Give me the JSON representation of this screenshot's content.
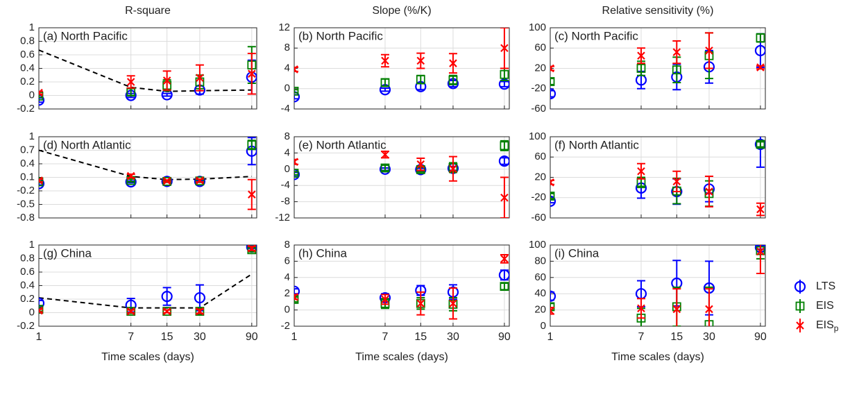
{
  "legend": [
    {
      "name": "LTS",
      "color": "#0000ff",
      "marker": "circle"
    },
    {
      "name": "EIS",
      "color": "#008000",
      "marker": "square"
    },
    {
      "name": "EIS",
      "subscript": "p",
      "color": "#ff0000",
      "marker": "x"
    }
  ],
  "chart_data": [
    {
      "type": "errorbar",
      "column_title": "R-square",
      "title": "(a) North Pacific",
      "x": [
        1,
        7,
        15,
        30,
        90
      ],
      "xscale": "log",
      "xlim": [
        1,
        100
      ],
      "xticks": [
        1,
        7,
        15,
        30,
        90
      ],
      "show_xtick_labels": false,
      "ylim": [
        -0.2,
        1
      ],
      "yticks": [
        -0.2,
        0,
        0.2,
        0.4,
        0.6,
        0.8,
        1
      ],
      "grid": true,
      "reference_line": {
        "values": [
          0.67,
          0.12,
          0.06,
          0.07,
          0.08
        ],
        "color": "#000000",
        "dashed": true
      },
      "series": [
        {
          "values": [
            -0.07,
            0.0,
            0.01,
            0.08,
            0.27
          ],
          "errors": [
            0.03,
            0.03,
            0.02,
            0.06,
            0.25
          ]
        },
        {
          "values": [
            -0.01,
            0.05,
            0.15,
            0.2,
            0.45
          ],
          "errors": [
            0.02,
            0.05,
            0.08,
            0.1,
            0.27
          ]
        },
        {
          "values": [
            0.04,
            0.2,
            0.22,
            0.26,
            0.32
          ],
          "errors": [
            0.02,
            0.09,
            0.14,
            0.19,
            0.3
          ]
        }
      ]
    },
    {
      "type": "errorbar",
      "column_title": "Slope (%/K)",
      "title": "(b) North Pacific",
      "x": [
        1,
        7,
        15,
        30,
        90
      ],
      "xscale": "log",
      "xlim": [
        1,
        100
      ],
      "xticks": [
        1,
        7,
        15,
        30,
        90
      ],
      "show_xtick_labels": false,
      "ylim": [
        -4,
        12
      ],
      "yticks": [
        -4,
        0,
        4,
        8,
        12
      ],
      "grid": true,
      "series": [
        {
          "values": [
            -1.6,
            -0.2,
            0.4,
            1.0,
            0.9
          ],
          "errors": [
            0.4,
            0.3,
            0.6,
            0.6,
            0.5
          ]
        },
        {
          "values": [
            -0.5,
            1.2,
            1.8,
            1.7,
            2.8
          ],
          "errors": [
            0.3,
            0.7,
            0.8,
            0.9,
            1.2
          ]
        },
        {
          "values": [
            3.8,
            5.5,
            5.5,
            5.0,
            8.0
          ],
          "errors": [
            0.4,
            1.2,
            1.5,
            1.9,
            4.0
          ]
        }
      ]
    },
    {
      "type": "errorbar",
      "column_title": "Relative sensitivity (%)",
      "title": "(c) North Pacific",
      "x": [
        1,
        7,
        15,
        30,
        90
      ],
      "xscale": "log",
      "xlim": [
        1,
        100
      ],
      "xticks": [
        1,
        7,
        15,
        30,
        90
      ],
      "show_xtick_labels": false,
      "ylim": [
        -60,
        100
      ],
      "yticks": [
        -60,
        -20,
        20,
        60,
        100
      ],
      "grid": true,
      "series": [
        {
          "values": [
            -30,
            -3,
            3,
            23,
            55
          ],
          "errors": [
            6,
            17,
            25,
            32,
            33
          ]
        },
        {
          "values": [
            -6,
            20,
            17,
            45,
            80
          ],
          "errors": [
            6,
            14,
            25,
            45,
            8
          ]
        },
        {
          "values": [
            20,
            45,
            52,
            55,
            22
          ],
          "errors": [
            4,
            15,
            22,
            35,
            3
          ]
        }
      ]
    },
    {
      "type": "errorbar",
      "title": "(d) North Atlantic",
      "x": [
        1,
        7,
        15,
        30,
        90
      ],
      "xscale": "log",
      "xlim": [
        1,
        100
      ],
      "xticks": [
        1,
        7,
        15,
        30,
        90
      ],
      "show_xtick_labels": false,
      "ylim": [
        -0.8,
        1
      ],
      "yticks": [
        -0.8,
        -0.5,
        -0.2,
        0.1,
        0.4,
        0.7,
        1
      ],
      "grid": true,
      "reference_line": {
        "values": [
          0.7,
          0.12,
          0.05,
          0.06,
          0.12
        ],
        "color": "#000000",
        "dashed": true
      },
      "series": [
        {
          "values": [
            -0.04,
            0.0,
            0.01,
            0.01,
            0.68
          ],
          "errors": [
            0.03,
            0.02,
            0.02,
            0.02,
            0.3
          ]
        },
        {
          "values": [
            0.0,
            0.03,
            0.01,
            0.02,
            0.82
          ],
          "errors": [
            0.02,
            0.03,
            0.02,
            0.03,
            0.1
          ]
        },
        {
          "values": [
            0.03,
            0.13,
            0.02,
            0.03,
            -0.28
          ],
          "errors": [
            0.03,
            0.04,
            0.02,
            0.03,
            0.33
          ]
        }
      ]
    },
    {
      "type": "errorbar",
      "title": "(e) North Atlantic",
      "x": [
        1,
        7,
        15,
        30,
        90
      ],
      "xscale": "log",
      "xlim": [
        1,
        100
      ],
      "xticks": [
        1,
        7,
        15,
        30,
        90
      ],
      "show_xtick_labels": false,
      "ylim": [
        -12,
        8
      ],
      "yticks": [
        -12,
        -8,
        -4,
        0,
        4,
        8
      ],
      "grid": true,
      "series": [
        {
          "values": [
            -1.3,
            0.0,
            -0.1,
            0.2,
            2.0
          ],
          "errors": [
            0.5,
            0.3,
            0.3,
            0.5,
            0.8
          ]
        },
        {
          "values": [
            -1.0,
            0.3,
            -0.1,
            0.4,
            5.8
          ],
          "errors": [
            0.4,
            0.7,
            0.6,
            1.2,
            1.2
          ]
        },
        {
          "values": [
            1.8,
            3.6,
            1.2,
            0.1,
            -7.0
          ],
          "errors": [
            0.6,
            0.8,
            1.5,
            3.0,
            5.0
          ]
        }
      ]
    },
    {
      "type": "errorbar",
      "title": "(f) North Atlantic",
      "x": [
        1,
        7,
        15,
        30,
        90
      ],
      "xscale": "log",
      "xlim": [
        1,
        100
      ],
      "xticks": [
        1,
        7,
        15,
        30,
        90
      ],
      "show_xtick_labels": false,
      "ylim": [
        -60,
        100
      ],
      "yticks": [
        -60,
        -20,
        20,
        60,
        100
      ],
      "grid": true,
      "series": [
        {
          "values": [
            -27,
            -1,
            -8,
            -3,
            85
          ],
          "errors": [
            3,
            20,
            25,
            25,
            45
          ]
        },
        {
          "values": [
            -17,
            10,
            -7,
            -12,
            85
          ],
          "errors": [
            5,
            10,
            25,
            25,
            5
          ]
        },
        {
          "values": [
            10,
            32,
            12,
            -8,
            -43
          ],
          "errors": [
            4,
            15,
            20,
            30,
            12
          ]
        }
      ]
    },
    {
      "type": "errorbar",
      "title": "(g) China",
      "x": [
        1,
        7,
        15,
        30,
        90
      ],
      "xscale": "log",
      "xlim": [
        1,
        100
      ],
      "xticks": [
        1,
        7,
        15,
        30,
        90
      ],
      "show_xtick_labels": true,
      "xlabel": "Time scales (days)",
      "ylim": [
        -0.2,
        1
      ],
      "yticks": [
        -0.2,
        0,
        0.2,
        0.4,
        0.6,
        0.8,
        1
      ],
      "grid": true,
      "reference_line": {
        "values": [
          0.22,
          0.07,
          0.07,
          0.07,
          0.57
        ],
        "color": "#000000",
        "dashed": true
      },
      "series": [
        {
          "values": [
            0.14,
            0.11,
            0.24,
            0.22,
            0.97
          ],
          "errors": [
            0.04,
            0.1,
            0.13,
            0.19,
            0.02
          ]
        },
        {
          "values": [
            0.05,
            0.02,
            0.02,
            0.02,
            0.93
          ],
          "errors": [
            0.03,
            0.03,
            0.02,
            0.04,
            0.03
          ]
        },
        {
          "values": [
            0.03,
            0.02,
            0.02,
            0.02,
            0.95
          ],
          "errors": [
            0.02,
            0.02,
            0.02,
            0.03,
            0.03
          ]
        }
      ]
    },
    {
      "type": "errorbar",
      "title": "(h) China",
      "x": [
        1,
        7,
        15,
        30,
        90
      ],
      "xscale": "log",
      "xlim": [
        1,
        100
      ],
      "xticks": [
        1,
        7,
        15,
        30,
        90
      ],
      "show_xtick_labels": true,
      "xlabel": "Time scales (days)",
      "ylim": [
        -2,
        8
      ],
      "yticks": [
        -2,
        0,
        2,
        4,
        6,
        8
      ],
      "grid": true,
      "series": [
        {
          "values": [
            2.3,
            1.5,
            2.4,
            2.2,
            4.3
          ],
          "errors": [
            0.3,
            0.5,
            0.6,
            0.9,
            0.6
          ]
        },
        {
          "values": [
            1.3,
            0.8,
            0.8,
            0.7,
            2.9
          ],
          "errors": [
            0.3,
            0.6,
            0.7,
            0.8,
            0.4
          ]
        },
        {
          "values": [
            1.6,
            1.3,
            0.8,
            0.8,
            6.3
          ],
          "errors": [
            0.3,
            0.6,
            1.4,
            1.9,
            0.5
          ]
        }
      ]
    },
    {
      "type": "errorbar",
      "title": "(i) China",
      "x": [
        1,
        7,
        15,
        30,
        90
      ],
      "xscale": "log",
      "xlim": [
        1,
        100
      ],
      "xticks": [
        1,
        7,
        15,
        30,
        90
      ],
      "show_xtick_labels": true,
      "xlabel": "Time scales (days)",
      "ylim": [
        0,
        100
      ],
      "yticks": [
        0,
        20,
        40,
        60,
        80,
        100
      ],
      "grid": true,
      "series": [
        {
          "values": [
            37,
            40,
            53,
            47,
            97
          ],
          "errors": [
            5,
            16,
            28,
            33,
            2
          ]
        },
        {
          "values": [
            24,
            10,
            24,
            2,
            93
          ],
          "errors": [
            4,
            12,
            24,
            46,
            10
          ]
        },
        {
          "values": [
            19,
            22,
            21,
            21,
            92
          ],
          "errors": [
            4,
            12,
            25,
            25,
            27
          ]
        }
      ]
    }
  ]
}
